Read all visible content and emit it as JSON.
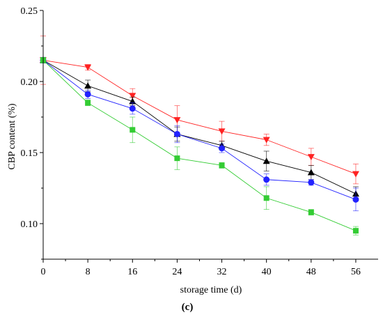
{
  "chart_data": {
    "type": "line",
    "panel_label": "(c)",
    "xlabel": "storage time (d)",
    "ylabel": "CBP content (%)",
    "x": [
      0,
      8,
      16,
      24,
      32,
      40,
      48,
      56
    ],
    "x_tick_labels": [
      "0",
      "8",
      "16",
      "24",
      "32",
      "40",
      "48",
      "56"
    ],
    "y_tick_labels": [
      "0.10",
      "0.15",
      "0.20",
      "0.25"
    ],
    "xlim": [
      0,
      60
    ],
    "ylim": [
      0.075,
      0.25
    ],
    "grid": false,
    "legend": "none",
    "series": [
      {
        "color": "#ff2222",
        "marker": "triangle-down",
        "values": [
          0.215,
          0.21,
          0.19,
          0.173,
          0.165,
          0.159,
          0.147,
          0.135
        ],
        "errors": [
          0.017,
          0.002,
          0.005,
          0.01,
          0.007,
          0.004,
          0.006,
          0.007
        ]
      },
      {
        "color": "#000000",
        "marker": "triangle-up",
        "values": [
          0.215,
          0.197,
          0.186,
          0.163,
          0.155,
          0.144,
          0.136,
          0.121
        ],
        "errors": [
          0.002,
          0.004,
          0.003,
          0.005,
          0.003,
          0.007,
          0.005,
          0.005
        ]
      },
      {
        "color": "#2222ff",
        "marker": "circle",
        "values": [
          0.215,
          0.191,
          0.181,
          0.163,
          0.153,
          0.131,
          0.129,
          0.117
        ],
        "errors": [
          0.002,
          0.003,
          0.004,
          0.006,
          0.003,
          0.004,
          0.002,
          0.008
        ]
      },
      {
        "color": "#33cc33",
        "marker": "square",
        "values": [
          0.215,
          0.185,
          0.166,
          0.146,
          0.141,
          0.118,
          0.108,
          0.095
        ],
        "errors": [
          0.002,
          0.002,
          0.009,
          0.008,
          0.002,
          0.008,
          0.002,
          0.003
        ]
      }
    ]
  }
}
